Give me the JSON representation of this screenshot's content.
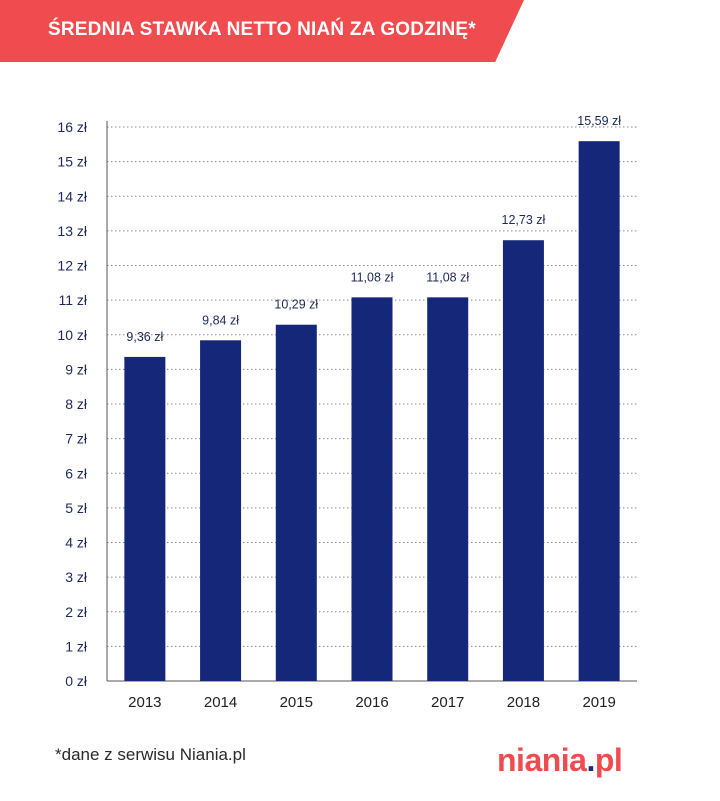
{
  "header": {
    "title": "ŚREDNIA STAWKA NETTO NIAŃ ZA GODZINĘ*"
  },
  "footer": {
    "note": "*dane z serwisu Niania.pl"
  },
  "logo": {
    "main": "niania",
    "dot": ".",
    "tld": "pl"
  },
  "colors": {
    "accent": "#f04b4f",
    "bar": "#152779",
    "text": "#1c2a5a"
  },
  "chart_data": {
    "type": "bar",
    "title": "ŚREDNIA STAWKA NETTO NIAŃ ZA GODZINĘ*",
    "xlabel": "",
    "ylabel": "",
    "categories": [
      "2013",
      "2014",
      "2015",
      "2016",
      "2017",
      "2018",
      "2019"
    ],
    "values": [
      9.36,
      9.84,
      10.29,
      11.08,
      11.08,
      12.73,
      15.59
    ],
    "value_labels": [
      "9,36 zł",
      "9,84 zł",
      "10,29 zł",
      "11,08 zł",
      "11,08 zł",
      "12,73 zł",
      "15,59 zł"
    ],
    "ylim": [
      0,
      16
    ],
    "yticks": [
      0,
      1,
      2,
      3,
      4,
      5,
      6,
      7,
      8,
      9,
      10,
      11,
      12,
      13,
      14,
      15,
      16
    ],
    "ytick_labels": [
      "0 zł",
      "1 zł",
      "2 zł",
      "3 zł",
      "4 zł",
      "5 zł",
      "6 zł",
      "7 zł",
      "8 zł",
      "9 zł",
      "10 zł",
      "11 zł",
      "12 zł",
      "13 zł",
      "14 zł",
      "15 zł",
      "16 zł"
    ],
    "grid": true
  }
}
